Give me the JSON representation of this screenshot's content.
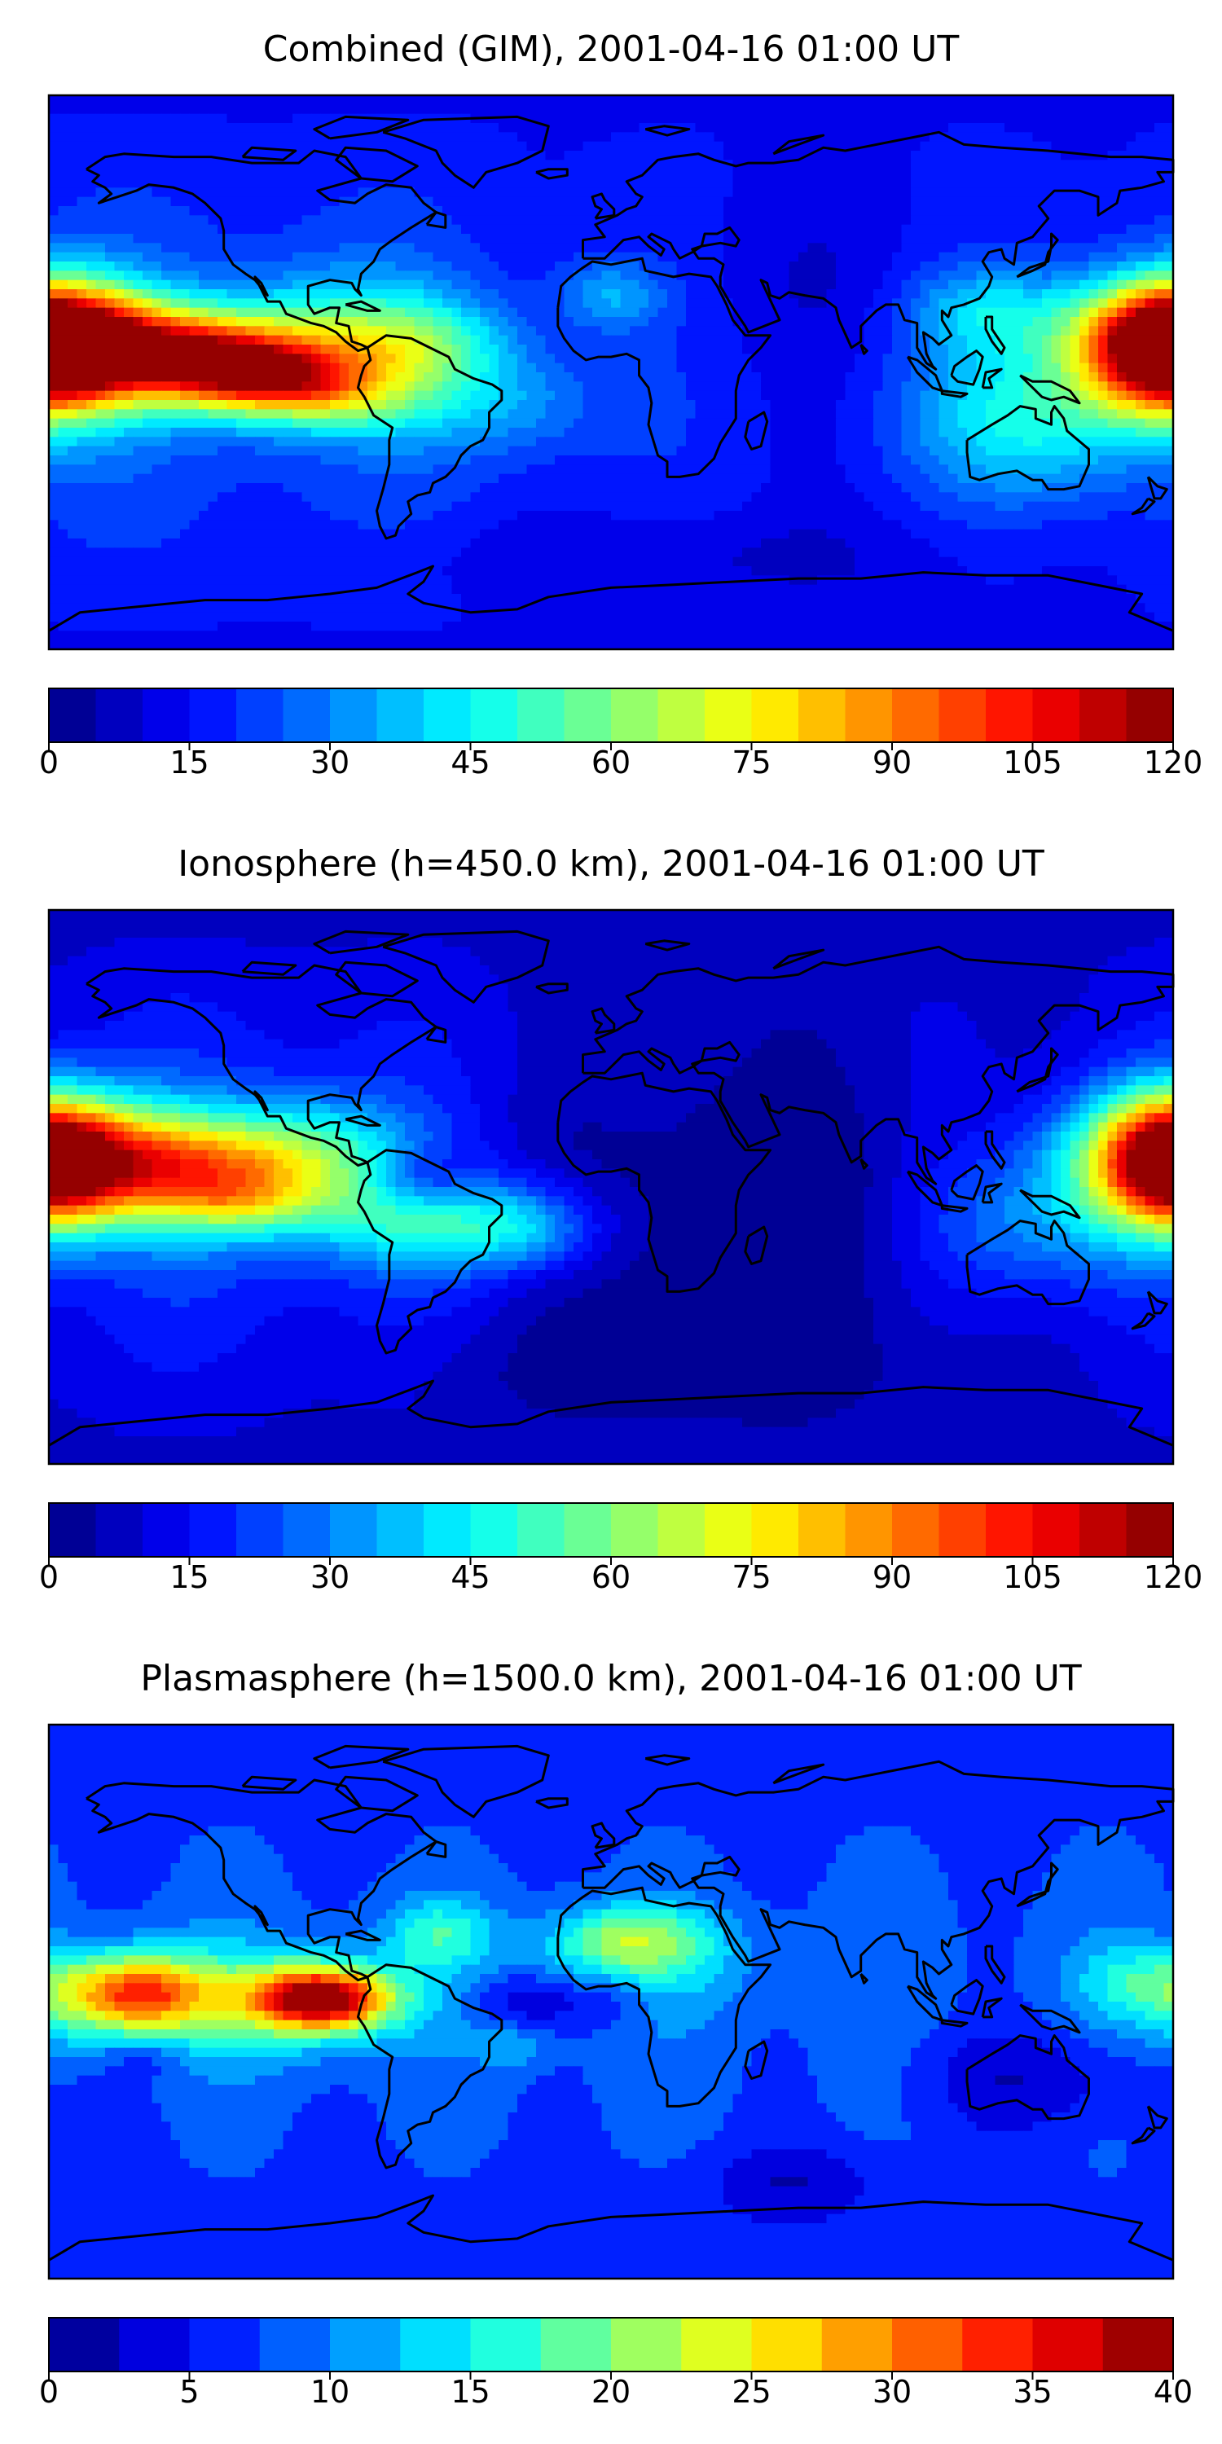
{
  "chart_data": [
    {
      "type": "heatmap",
      "title": "Combined (GIM), 2001-04-16 01:00 UT",
      "colormap": "jet",
      "levels": [
        0,
        5,
        10,
        15,
        20,
        25,
        30,
        35,
        40,
        45,
        50,
        55,
        60,
        65,
        70,
        75,
        80,
        85,
        90,
        95,
        100,
        105,
        110,
        115,
        120
      ],
      "colorbar_ticks": [
        "0",
        "15",
        "30",
        "45",
        "60",
        "75",
        "90",
        "105",
        "120"
      ],
      "range": [
        0,
        120
      ],
      "features": [
        {
          "lon": -125,
          "lat": 3,
          "sx": 38,
          "sy": 11,
          "value": 100,
          "tilt": -0.12
        },
        {
          "lon": -115,
          "lat": -1,
          "sx": 22,
          "sy": 6,
          "value": 22,
          "tilt": -0.2
        },
        {
          "lon": -60,
          "lat": 10,
          "sx": 20,
          "sy": 10,
          "value": 25
        },
        {
          "lon": -90,
          "lat": 18,
          "sx": 25,
          "sy": 12,
          "value": 18
        },
        {
          "lon": 178,
          "lat": 8,
          "sx": 22,
          "sy": 15,
          "value": 70
        },
        {
          "lon": -180,
          "lat": 8,
          "sx": 16,
          "sy": 14,
          "value": 55
        },
        {
          "lon": 135,
          "lat": -15,
          "sx": 28,
          "sy": 18,
          "value": 28
        },
        {
          "lon": 120,
          "lat": 20,
          "sx": 18,
          "sy": 10,
          "value": 20
        },
        {
          "lon": 0,
          "lat": 25,
          "sx": 12,
          "sy": 8,
          "value": 18
        },
        {
          "lon": -30,
          "lat": -10,
          "sx": 20,
          "sy": 12,
          "value": 12
        },
        {
          "lon": 20,
          "lat": -60,
          "sx": 70,
          "sy": 10,
          "value": -6
        },
        {
          "lon": 60,
          "lat": 30,
          "sx": 30,
          "sy": 20,
          "value": -4
        }
      ]
    },
    {
      "type": "heatmap",
      "title": "Ionosphere  (h=450.0 km), 2001-04-16 01:00 UT",
      "colormap": "jet",
      "levels": [
        0,
        5,
        10,
        15,
        20,
        25,
        30,
        35,
        40,
        45,
        50,
        55,
        60,
        65,
        70,
        75,
        80,
        85,
        90,
        95,
        100,
        105,
        110,
        115,
        120
      ],
      "colorbar_ticks": [
        "0",
        "15",
        "30",
        "45",
        "60",
        "75",
        "90",
        "105",
        "120"
      ],
      "range": [
        0,
        120
      ],
      "features": [
        {
          "lon": -135,
          "lat": 5,
          "sx": 38,
          "sy": 13,
          "value": 72,
          "tilt": -0.1
        },
        {
          "lon": -120,
          "lat": -5,
          "sx": 12,
          "sy": 5,
          "value": 10
        },
        {
          "lon": -95,
          "lat": 15,
          "sx": 22,
          "sy": 12,
          "value": 20
        },
        {
          "lon": -60,
          "lat": 2,
          "sx": 12,
          "sy": 7,
          "value": -18
        },
        {
          "lon": -45,
          "lat": -12,
          "sx": 28,
          "sy": 11,
          "value": 32
        },
        {
          "lon": -25,
          "lat": -15,
          "sx": 12,
          "sy": 8,
          "value": 10
        },
        {
          "lon": 178,
          "lat": 8,
          "sx": 22,
          "sy": 16,
          "value": 58
        },
        {
          "lon": -180,
          "lat": 8,
          "sx": 14,
          "sy": 14,
          "value": 45
        },
        {
          "lon": 135,
          "lat": -12,
          "sx": 25,
          "sy": 16,
          "value": 20
        },
        {
          "lon": 30,
          "lat": -10,
          "sx": 45,
          "sy": 30,
          "value": -12
        },
        {
          "lon": 10,
          "lat": -60,
          "sx": 60,
          "sy": 12,
          "value": -6
        }
      ]
    },
    {
      "type": "heatmap",
      "title": "Plasmasphere (h=1500.0 km), 2001-04-16 01:00 UT",
      "colormap": "jet",
      "levels": [
        0,
        2.5,
        5,
        7.5,
        10,
        12.5,
        15,
        17.5,
        20,
        22.5,
        25,
        27.5,
        30,
        32.5,
        35,
        37.5,
        40
      ],
      "colorbar_ticks": [
        "0",
        "5",
        "10",
        "15",
        "20",
        "25",
        "30",
        "35",
        "40"
      ],
      "range": [
        0,
        40
      ],
      "features": [
        {
          "lon": -92,
          "lat": 1,
          "sx": 15,
          "sy": 7,
          "value": 28
        },
        {
          "lon": -110,
          "lat": 0,
          "sx": 30,
          "sy": 12,
          "value": 10
        },
        {
          "lon": -150,
          "lat": 3,
          "sx": 15,
          "sy": 9,
          "value": 18
        },
        {
          "lon": -170,
          "lat": 0,
          "sx": 20,
          "sy": 10,
          "value": 8
        },
        {
          "lon": -55,
          "lat": 22,
          "sx": 12,
          "sy": 8,
          "value": 8
        },
        {
          "lon": 5,
          "lat": 20,
          "sx": 18,
          "sy": 8,
          "value": 11
        },
        {
          "lon": 15,
          "lat": 12,
          "sx": 25,
          "sy": 12,
          "value": 4
        },
        {
          "lon": -28,
          "lat": 0,
          "sx": 12,
          "sy": 6,
          "value": -5
        },
        {
          "lon": 0,
          "lat": 0,
          "sx": 10,
          "sy": 6,
          "value": -4
        },
        {
          "lon": -30,
          "lat": -15,
          "sx": 8,
          "sy": 5,
          "value": 4
        },
        {
          "lon": 135,
          "lat": -25,
          "sx": 28,
          "sy": 12,
          "value": -5
        },
        {
          "lon": 170,
          "lat": 8,
          "sx": 15,
          "sy": 8,
          "value": 5
        },
        {
          "lon": 60,
          "lat": -58,
          "sx": 20,
          "sy": 8,
          "value": -4
        },
        {
          "lon": -150,
          "lat": -18,
          "sx": 8,
          "sy": 5,
          "value": -3
        }
      ]
    }
  ],
  "map": {
    "projection": "PlateCarree",
    "extent": [
      -180,
      180,
      -90,
      90
    ],
    "features": [
      "coastlines"
    ]
  }
}
